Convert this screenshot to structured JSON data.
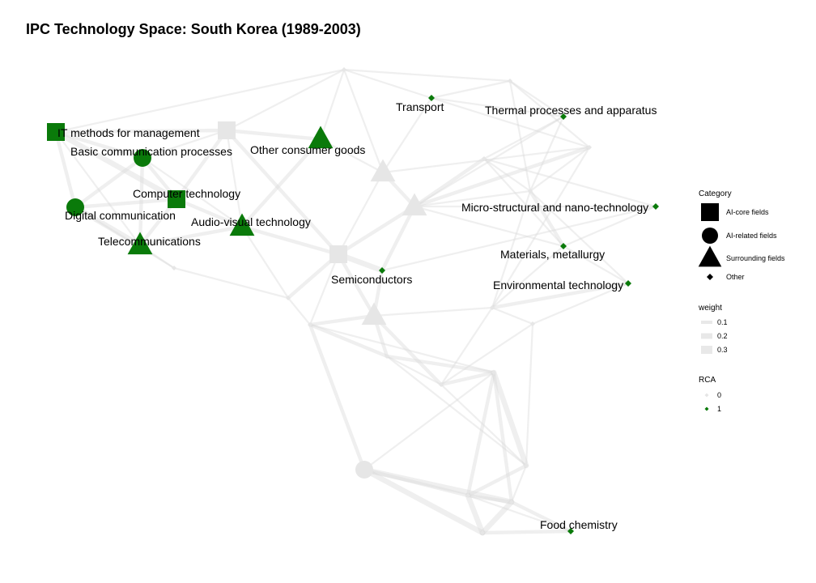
{
  "title": "IPC Technology Space: South Korea (1989-2003)",
  "colors": {
    "active": "#0a7a0a",
    "inactive": "#e6e6e6",
    "edge": "#d9d9d9"
  },
  "legend": {
    "category": {
      "title": "Category",
      "items": [
        {
          "label": "AI-core fields",
          "shape": "square"
        },
        {
          "label": "AI-related fields",
          "shape": "circle"
        },
        {
          "label": "Surrounding fields",
          "shape": "triangle"
        },
        {
          "label": "Other",
          "shape": "diamond"
        }
      ]
    },
    "weight": {
      "title": "weight",
      "items": [
        "0.1",
        "0.2",
        "0.3"
      ]
    },
    "rca": {
      "title": "RCA",
      "items": [
        "0",
        "1"
      ]
    }
  },
  "nodes": [
    {
      "id": "it",
      "label": "IT methods for management",
      "shape": "square",
      "rca": 1
    },
    {
      "id": "bcp",
      "label": "Basic communication processes",
      "shape": "circle",
      "rca": 1
    },
    {
      "id": "ocg",
      "label": "Other consumer goods",
      "shape": "triangle",
      "rca": 1
    },
    {
      "id": "ct",
      "label": "Computer technology",
      "shape": "square",
      "rca": 1
    },
    {
      "id": "dc",
      "label": "Digital communication",
      "shape": "circle",
      "rca": 1
    },
    {
      "id": "avt",
      "label": "Audio-visual technology",
      "shape": "triangle",
      "rca": 1
    },
    {
      "id": "tel",
      "label": "Telecommunications",
      "shape": "triangle",
      "rca": 1
    },
    {
      "id": "tr",
      "label": "Transport",
      "shape": "diamond",
      "rca": 1
    },
    {
      "id": "tpa",
      "label": "Thermal processes and apparatus",
      "shape": "diamond",
      "rca": 1
    },
    {
      "id": "msn",
      "label": "Micro-structural and nano-technology",
      "shape": "diamond",
      "rca": 1
    },
    {
      "id": "mm",
      "label": "Materials, metallurgy",
      "shape": "diamond",
      "rca": 1
    },
    {
      "id": "env",
      "label": "Environmental technology",
      "shape": "diamond",
      "rca": 1
    },
    {
      "id": "semi",
      "label": "Semiconductors",
      "shape": "diamond",
      "rca": 1
    },
    {
      "id": "food",
      "label": "Food chemistry",
      "shape": "diamond",
      "rca": 1
    },
    {
      "id": "g1",
      "label": "",
      "shape": "square",
      "rca": 0
    },
    {
      "id": "g2",
      "label": "",
      "shape": "triangle",
      "rca": 0
    },
    {
      "id": "g3",
      "label": "",
      "shape": "triangle",
      "rca": 0
    },
    {
      "id": "g4",
      "label": "",
      "shape": "square",
      "rca": 0
    },
    {
      "id": "g5",
      "label": "",
      "shape": "triangle",
      "rca": 0
    },
    {
      "id": "g6",
      "label": "",
      "shape": "circle",
      "rca": 0
    },
    {
      "id": "g7",
      "label": "",
      "shape": "diamond",
      "rca": 0
    },
    {
      "id": "g8",
      "label": "",
      "shape": "diamond",
      "rca": 0
    },
    {
      "id": "g9",
      "label": "",
      "shape": "diamond",
      "rca": 0
    },
    {
      "id": "g10",
      "label": "",
      "shape": "diamond",
      "rca": 0
    },
    {
      "id": "g11",
      "label": "",
      "shape": "diamond",
      "rca": 0
    },
    {
      "id": "g12",
      "label": "",
      "shape": "diamond",
      "rca": 0
    },
    {
      "id": "g13",
      "label": "",
      "shape": "diamond",
      "rca": 0
    },
    {
      "id": "g14",
      "label": "",
      "shape": "diamond",
      "rca": 0
    },
    {
      "id": "g15",
      "label": "",
      "shape": "diamond",
      "rca": 0
    },
    {
      "id": "g16",
      "label": "",
      "shape": "diamond",
      "rca": 0
    },
    {
      "id": "g17",
      "label": "",
      "shape": "diamond",
      "rca": 0
    },
    {
      "id": "g18",
      "label": "",
      "shape": "diamond",
      "rca": 0
    },
    {
      "id": "g19",
      "label": "",
      "shape": "diamond",
      "rca": 0
    },
    {
      "id": "g20",
      "label": "",
      "shape": "diamond",
      "rca": 0
    },
    {
      "id": "g21",
      "label": "",
      "shape": "diamond",
      "rca": 0
    },
    {
      "id": "g22",
      "label": "",
      "shape": "diamond",
      "rca": 0
    },
    {
      "id": "g23",
      "label": "",
      "shape": "diamond",
      "rca": 0
    }
  ],
  "edges": [
    {
      "s": "it",
      "t": "bcp",
      "w": 0.2
    },
    {
      "s": "it",
      "t": "dc",
      "w": 0.2
    },
    {
      "s": "it",
      "t": "ct",
      "w": 0.3
    },
    {
      "s": "it",
      "t": "g1",
      "w": 0.2
    },
    {
      "s": "it",
      "t": "tel",
      "w": 0.1
    },
    {
      "s": "it",
      "t": "g11",
      "w": 0.1
    },
    {
      "s": "bcp",
      "t": "dc",
      "w": 0.2
    },
    {
      "s": "bcp",
      "t": "tel",
      "w": 0.2
    },
    {
      "s": "bcp",
      "t": "ct",
      "w": 0.2
    },
    {
      "s": "bcp",
      "t": "g1",
      "w": 0.1
    },
    {
      "s": "bcp",
      "t": "avt",
      "w": 0.1
    },
    {
      "s": "ct",
      "t": "dc",
      "w": 0.2
    },
    {
      "s": "ct",
      "t": "tel",
      "w": 0.2
    },
    {
      "s": "ct",
      "t": "avt",
      "w": 0.2
    },
    {
      "s": "ct",
      "t": "g1",
      "w": 0.2
    },
    {
      "s": "dc",
      "t": "tel",
      "w": 0.3
    },
    {
      "s": "dc",
      "t": "g14",
      "w": 0.1
    },
    {
      "s": "tel",
      "t": "avt",
      "w": 0.2
    },
    {
      "s": "tel",
      "t": "g14",
      "w": 0.1
    },
    {
      "s": "avt",
      "t": "g4",
      "w": 0.2
    },
    {
      "s": "avt",
      "t": "ocg",
      "w": 0.2
    },
    {
      "s": "avt",
      "t": "g1",
      "w": 0.1
    },
    {
      "s": "avt",
      "t": "g13",
      "w": 0.1
    },
    {
      "s": "g1",
      "t": "ocg",
      "w": 0.2
    },
    {
      "s": "g1",
      "t": "g4",
      "w": 0.2
    },
    {
      "s": "g1",
      "t": "g11",
      "w": 0.1
    },
    {
      "s": "g4",
      "t": "semi",
      "w": 0.3
    },
    {
      "s": "g4",
      "t": "g3",
      "w": 0.2
    },
    {
      "s": "g4",
      "t": "g5",
      "w": 0.2
    },
    {
      "s": "g4",
      "t": "g13",
      "w": 0.2
    },
    {
      "s": "g4",
      "t": "g15",
      "w": 0.1
    },
    {
      "s": "g4",
      "t": "g2",
      "w": 0.1
    },
    {
      "s": "semi",
      "t": "g3",
      "w": 0.2
    },
    {
      "s": "semi",
      "t": "g5",
      "w": 0.2
    },
    {
      "s": "semi",
      "t": "msn",
      "w": 0.1
    },
    {
      "s": "g2",
      "t": "g3",
      "w": 0.2
    },
    {
      "s": "g2",
      "t": "ocg",
      "w": 0.1
    },
    {
      "s": "g2",
      "t": "g11",
      "w": 0.1
    },
    {
      "s": "g2",
      "t": "tr",
      "w": 0.1
    },
    {
      "s": "g2",
      "t": "g12",
      "w": 0.1
    },
    {
      "s": "g3",
      "t": "g12",
      "w": 0.2
    },
    {
      "s": "g3",
      "t": "mm",
      "w": 0.1
    },
    {
      "s": "g3",
      "t": "g9",
      "w": 0.1
    },
    {
      "s": "g3",
      "t": "g8",
      "w": 0.2
    },
    {
      "s": "g3",
      "t": "tpa",
      "w": 0.1
    },
    {
      "s": "g3",
      "t": "msn",
      "w": 0.1
    },
    {
      "s": "g5",
      "t": "g16",
      "w": 0.2
    },
    {
      "s": "g5",
      "t": "g17",
      "w": 0.2
    },
    {
      "s": "g5",
      "t": "g15",
      "w": 0.2
    },
    {
      "s": "g5",
      "t": "g10",
      "w": 0.1
    },
    {
      "s": "g11",
      "t": "tr",
      "w": 0.1
    },
    {
      "s": "g11",
      "t": "g7",
      "w": 0.1
    },
    {
      "s": "g11",
      "t": "ocg",
      "w": 0.1
    },
    {
      "s": "tr",
      "t": "g12",
      "w": 0.1
    },
    {
      "s": "tr",
      "t": "g7",
      "w": 0.1
    },
    {
      "s": "tr",
      "t": "tpa",
      "w": 0.1
    },
    {
      "s": "g7",
      "t": "tpa",
      "w": 0.1
    },
    {
      "s": "g7",
      "t": "g12",
      "w": 0.1
    },
    {
      "s": "g7",
      "t": "g9",
      "w": 0.1
    },
    {
      "s": "tpa",
      "t": "g8",
      "w": 0.1
    },
    {
      "s": "tpa",
      "t": "g9",
      "w": 0.1
    },
    {
      "s": "g8",
      "t": "msn",
      "w": 0.1
    },
    {
      "s": "g8",
      "t": "mm",
      "w": 0.1
    },
    {
      "s": "g8",
      "t": "g9",
      "w": 0.1
    },
    {
      "s": "g12",
      "t": "g9",
      "w": 0.1
    },
    {
      "s": "g12",
      "t": "g10",
      "w": 0.1
    },
    {
      "s": "g9",
      "t": "mm",
      "w": 0.2
    },
    {
      "s": "g9",
      "t": "g10",
      "w": 0.1
    },
    {
      "s": "g9",
      "t": "env",
      "w": 0.1
    },
    {
      "s": "g10",
      "t": "mm",
      "w": 0.1
    },
    {
      "s": "g10",
      "t": "env",
      "w": 0.2
    },
    {
      "s": "g10",
      "t": "g17",
      "w": 0.1
    },
    {
      "s": "g10",
      "t": "g19",
      "w": 0.1
    },
    {
      "s": "mm",
      "t": "env",
      "w": 0.1
    },
    {
      "s": "mm",
      "t": "msn",
      "w": 0.1
    },
    {
      "s": "env",
      "t": "g19",
      "w": 0.1
    },
    {
      "s": "g14",
      "t": "g13",
      "w": 0.1
    },
    {
      "s": "g13",
      "t": "g15",
      "w": 0.1
    },
    {
      "s": "g15",
      "t": "g16",
      "w": 0.2
    },
    {
      "s": "g15",
      "t": "g6",
      "w": 0.2
    },
    {
      "s": "g15",
      "t": "g18",
      "w": 0.1
    },
    {
      "s": "g16",
      "t": "g17",
      "w": 0.1
    },
    {
      "s": "g16",
      "t": "g18",
      "w": 0.2
    },
    {
      "s": "g16",
      "t": "g20",
      "w": 0.1
    },
    {
      "s": "g17",
      "t": "g18",
      "w": 0.2
    },
    {
      "s": "g17",
      "t": "g19",
      "w": 0.1
    },
    {
      "s": "g17",
      "t": "g20",
      "w": 0.1
    },
    {
      "s": "g18",
      "t": "g20",
      "w": 0.3
    },
    {
      "s": "g18",
      "t": "g21",
      "w": 0.2
    },
    {
      "s": "g18",
      "t": "g22",
      "w": 0.2
    },
    {
      "s": "g18",
      "t": "g6",
      "w": 0.1
    },
    {
      "s": "g19",
      "t": "g20",
      "w": 0.1
    },
    {
      "s": "g20",
      "t": "g21",
      "w": 0.2
    },
    {
      "s": "g20",
      "t": "g22",
      "w": 0.1
    },
    {
      "s": "g6",
      "t": "g22",
      "w": 0.3
    },
    {
      "s": "g6",
      "t": "g21",
      "w": 0.2
    },
    {
      "s": "g6",
      "t": "g23",
      "w": 0.3
    },
    {
      "s": "g21",
      "t": "g22",
      "w": 0.2
    },
    {
      "s": "g21",
      "t": "g23",
      "w": 0.3
    },
    {
      "s": "g22",
      "t": "g23",
      "w": 0.3
    },
    {
      "s": "g22",
      "t": "food",
      "w": 0.2
    },
    {
      "s": "g23",
      "t": "food",
      "w": 0.2
    },
    {
      "s": "g21",
      "t": "food",
      "w": 0.1
    }
  ]
}
